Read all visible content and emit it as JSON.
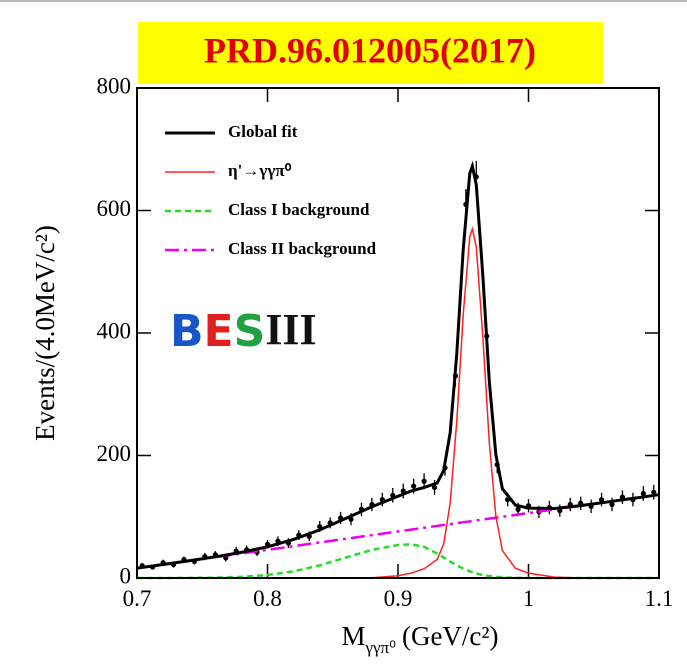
{
  "chart_data": {
    "type": "line",
    "title": "PRD.96.012005(2017)",
    "y_label": "Events/(4.0MeV/c²)",
    "x_label": {
      "main": "M",
      "sub": "γγπ⁰",
      "unit": "(GeV/c²)"
    },
    "logo": [
      "B",
      "E",
      "S",
      "III"
    ],
    "xlim": [
      0.7,
      1.1
    ],
    "xticks": [
      0.7,
      0.8,
      0.9,
      1,
      1.1
    ],
    "ylim": [
      0,
      800
    ],
    "yticks": [
      0,
      200,
      400,
      600,
      800
    ],
    "legend": "top-left",
    "x": [
      0.7,
      0.72,
      0.74,
      0.76,
      0.78,
      0.8,
      0.82,
      0.84,
      0.86,
      0.88,
      0.9,
      0.91,
      0.92,
      0.93,
      0.935,
      0.94,
      0.945,
      0.95,
      0.955,
      0.957,
      0.96,
      0.965,
      0.97,
      0.975,
      0.98,
      0.99,
      1.0,
      1.02,
      1.04,
      1.06,
      1.08,
      1.1
    ],
    "series": [
      {
        "name": "Global fit",
        "color": "#000000",
        "dash": "solid",
        "width": 3,
        "values": [
          16,
          22,
          28.2,
          34.6,
          41.9,
          50.9,
          62.9,
          78.6,
          97.4,
          116.3,
          133.5,
          141.9,
          147.9,
          155.1,
          175.5,
          237.5,
          364.8,
          537.2,
          660.5,
          672.4,
          641.9,
          494.3,
          320.2,
          201.2,
          145.6,
          119,
          114.1,
          113.4,
          118.1,
          124,
          130,
          136
        ]
      },
      {
        "name": "η'→γγπ⁰",
        "color": "#ff2020",
        "dash": "solid",
        "width": 1.5,
        "values": [
          0,
          0,
          0,
          0,
          0,
          0,
          0,
          0,
          0,
          0.4,
          3.6,
          7.9,
          15.1,
          30.2,
          55.6,
          122.7,
          254.7,
          430.9,
          557.1,
          569.9,
          540.5,
          393.9,
          220.1,
          100.8,
          44.5,
          15.7,
          7.9,
          1.4,
          0.1,
          0,
          0,
          0
        ]
      },
      {
        "name": "Class I background",
        "color": "#22dd22",
        "dash": "dashed",
        "width": 2.5,
        "values": [
          0,
          0,
          0.2,
          0.6,
          1.9,
          4.9,
          10.9,
          20.6,
          33.4,
          45.9,
          53.9,
          55,
          50.8,
          39.9,
          33.4,
          26.8,
          20.6,
          15.3,
          10.9,
          9.4,
          7.4,
          4.9,
          3.1,
          1.9,
          1.1,
          0.3,
          0.1,
          0,
          0,
          0,
          0,
          0
        ]
      },
      {
        "name": "Class II background",
        "color": "#ee00ee",
        "dash": "dashdot",
        "width": 2.5,
        "values": [
          16,
          22,
          28,
          34,
          40,
          46,
          52,
          58,
          64,
          70,
          76,
          79,
          82,
          85,
          86.5,
          88,
          89.5,
          91,
          92.5,
          93.1,
          94,
          95.5,
          97,
          98.5,
          100,
          103,
          106,
          112,
          118,
          124,
          130,
          136
        ]
      }
    ],
    "points": {
      "x": [
        0.704,
        0.712,
        0.72,
        0.728,
        0.736,
        0.744,
        0.752,
        0.76,
        0.768,
        0.776,
        0.784,
        0.792,
        0.8,
        0.808,
        0.816,
        0.824,
        0.832,
        0.84,
        0.848,
        0.856,
        0.864,
        0.872,
        0.88,
        0.888,
        0.896,
        0.904,
        0.912,
        0.92,
        0.928,
        0.936,
        0.944,
        0.952,
        0.96,
        0.968,
        0.976,
        0.984,
        0.992,
        1.0,
        1.008,
        1.016,
        1.024,
        1.032,
        1.04,
        1.048,
        1.056,
        1.064,
        1.072,
        1.08,
        1.088,
        1.096
      ],
      "values": [
        20,
        18,
        25,
        22,
        30,
        27,
        35,
        38,
        33,
        44,
        46,
        42,
        55,
        60,
        57,
        70,
        68,
        84,
        90,
        98,
        96,
        112,
        120,
        128,
        135,
        142,
        150,
        158,
        148,
        180,
        330,
        610,
        655,
        395,
        185,
        128,
        112,
        118,
        108,
        115,
        110,
        120,
        122,
        117,
        128,
        120,
        132,
        128,
        138,
        140
      ],
      "errors": [
        4,
        4,
        5,
        5,
        5,
        5,
        6,
        6,
        6,
        7,
        7,
        6,
        7,
        8,
        8,
        8,
        8,
        9,
        9,
        10,
        10,
        11,
        11,
        11,
        12,
        12,
        12,
        13,
        12,
        13,
        18,
        25,
        26,
        20,
        14,
        11,
        11,
        11,
        10,
        11,
        10,
        11,
        11,
        11,
        11,
        11,
        11,
        11,
        12,
        12
      ]
    }
  }
}
